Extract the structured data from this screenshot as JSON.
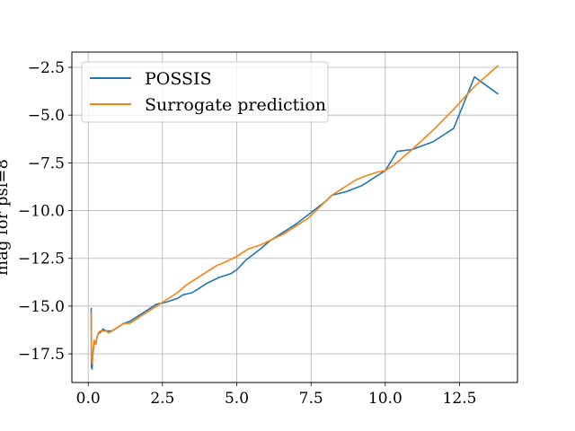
{
  "chart_data": {
    "type": "line",
    "title": "",
    "xlabel": "",
    "ylabel": "mag for psi=8",
    "xlim": [
      -0.55,
      14.45
    ],
    "ylim": [
      -19.0,
      -1.7
    ],
    "xticks": [
      0.0,
      2.5,
      5.0,
      7.5,
      10.0,
      12.5
    ],
    "xtick_labels": [
      "0.0",
      "2.5",
      "5.0",
      "7.5",
      "10.0",
      "12.5"
    ],
    "yticks": [
      -17.5,
      -15.0,
      -12.5,
      -10.0,
      -7.5,
      -5.0,
      -2.5
    ],
    "ytick_labels": [
      "−17.5",
      "−15.0",
      "−12.5",
      "−10.0",
      "−7.5",
      "−5.0",
      "−2.5"
    ],
    "grid": true,
    "legend_position": "top-left",
    "series": [
      {
        "name": "POSSIS",
        "color": "#1f77b4",
        "x": [
          0.1,
          0.11,
          0.13,
          0.15,
          0.18,
          0.2,
          0.25,
          0.3,
          0.35,
          0.4,
          0.5,
          0.6,
          0.7,
          0.8,
          1.0,
          1.2,
          1.4,
          1.6,
          1.8,
          2.0,
          2.3,
          2.6,
          3.0,
          3.2,
          3.5,
          3.7,
          4.0,
          4.4,
          4.8,
          5.0,
          5.3,
          5.8,
          6.1,
          6.5,
          7.0,
          7.5,
          8.0,
          8.2,
          8.7,
          9.2,
          9.6,
          10.0,
          10.4,
          10.9,
          11.6,
          12.3,
          13.0,
          13.8
        ],
        "y": [
          -15.1,
          -18.2,
          -18.3,
          -17.6,
          -17.2,
          -16.8,
          -17.0,
          -16.6,
          -16.4,
          -16.4,
          -16.2,
          -16.3,
          -16.3,
          -16.3,
          -16.1,
          -15.9,
          -15.8,
          -15.6,
          -15.4,
          -15.2,
          -14.9,
          -14.8,
          -14.6,
          -14.4,
          -14.3,
          -14.1,
          -13.8,
          -13.5,
          -13.3,
          -13.1,
          -12.6,
          -12.0,
          -11.6,
          -11.2,
          -10.7,
          -10.1,
          -9.5,
          -9.2,
          -9.0,
          -8.7,
          -8.3,
          -7.9,
          -6.9,
          -6.8,
          -6.4,
          -5.7,
          -3.0,
          -3.9
        ]
      },
      {
        "name": "Surrogate prediction",
        "color": "#ff7f0e",
        "x": [
          0.1,
          0.11,
          0.13,
          0.15,
          0.18,
          0.2,
          0.25,
          0.3,
          0.35,
          0.4,
          0.5,
          0.6,
          0.7,
          0.8,
          1.0,
          1.2,
          1.4,
          1.6,
          1.8,
          2.0,
          2.3,
          2.6,
          3.0,
          3.3,
          3.6,
          4.0,
          4.3,
          4.6,
          5.0,
          5.4,
          5.8,
          6.2,
          6.6,
          7.0,
          7.4,
          7.8,
          8.2,
          8.6,
          9.0,
          9.3,
          9.7,
          10.0,
          10.3,
          10.9,
          11.6,
          12.3,
          13.0,
          13.8
        ],
        "y": [
          -15.3,
          -17.6,
          -18.0,
          -17.6,
          -17.1,
          -16.8,
          -17.0,
          -16.6,
          -16.4,
          -16.3,
          -16.3,
          -16.3,
          -16.4,
          -16.3,
          -16.1,
          -15.9,
          -15.9,
          -15.7,
          -15.5,
          -15.3,
          -15.0,
          -14.7,
          -14.3,
          -13.9,
          -13.6,
          -13.2,
          -12.9,
          -12.7,
          -12.4,
          -12.0,
          -11.8,
          -11.5,
          -11.2,
          -10.8,
          -10.4,
          -9.8,
          -9.2,
          -8.8,
          -8.4,
          -8.2,
          -8.0,
          -7.9,
          -7.6,
          -6.8,
          -5.8,
          -4.7,
          -3.5,
          -2.4
        ]
      }
    ]
  }
}
